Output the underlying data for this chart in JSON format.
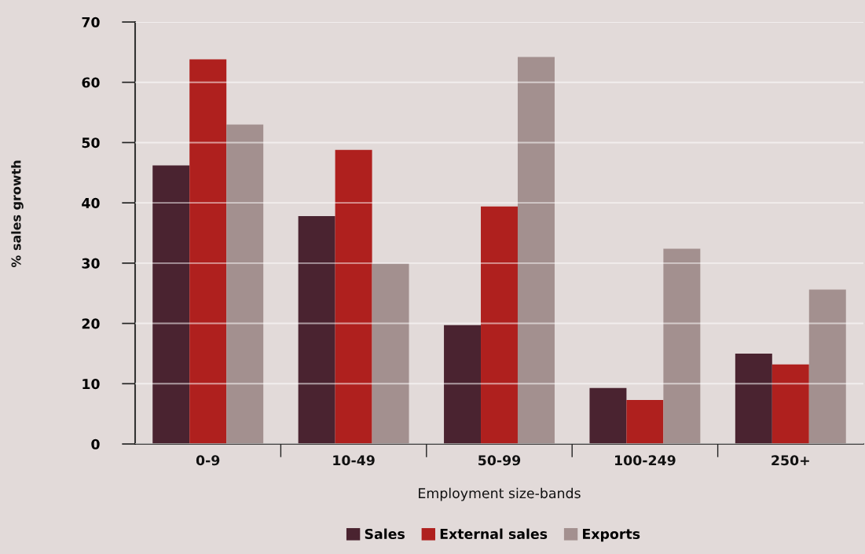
{
  "chart_data": {
    "type": "bar",
    "xlabel": "Employment size-bands",
    "ylabel": "% sales growth",
    "categories": [
      "0-9",
      "10-49",
      "50-99",
      "100-249",
      "250+"
    ],
    "series": [
      {
        "name": "Sales",
        "color": "#4a2330",
        "values": [
          46.2,
          37.8,
          19.7,
          9.3,
          15.0
        ]
      },
      {
        "name": "External sales",
        "color": "#af201e",
        "values": [
          63.8,
          48.8,
          39.4,
          7.3,
          13.2
        ]
      },
      {
        "name": "Exports",
        "color": "#a3908f",
        "values": [
          53.0,
          29.9,
          64.2,
          32.4,
          25.6
        ]
      }
    ],
    "ylim": [
      0,
      70
    ],
    "yticks": [
      0,
      10,
      20,
      30,
      40,
      50,
      60,
      70
    ],
    "grid": "y",
    "legend": "bottom"
  }
}
